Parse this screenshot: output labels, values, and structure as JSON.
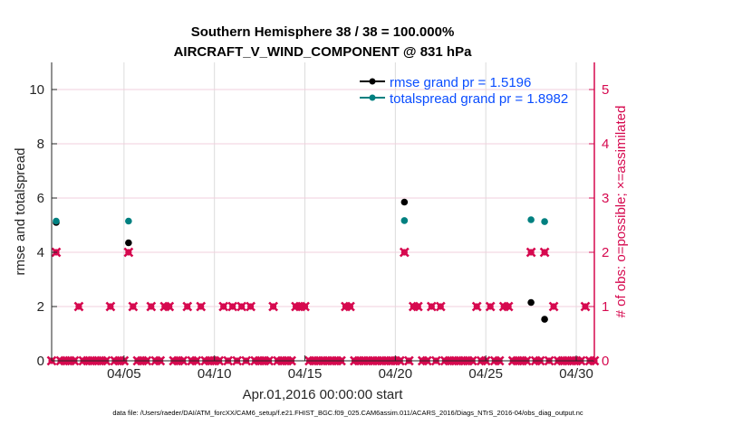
{
  "chart_data": {
    "type": "scatter",
    "title": [
      "Southern Hemisphere 38 / 38 = 100.000%",
      "AIRCRAFT_V_WIND_COMPONENT @ 831 hPa"
    ],
    "xlabel": "Apr.01,2016 00:00:00 start",
    "ylabel_left": "rmse and totalspread",
    "ylabel_right": "# of obs: o=possible; ×=assimilated",
    "x_ticks": [
      "04/05",
      "04/10",
      "04/15",
      "04/20",
      "04/25",
      "04/30"
    ],
    "x_tick_dates": [
      "2016-04-05",
      "2016-04-10",
      "2016-04-15",
      "2016-04-20",
      "2016-04-25",
      "2016-04-30"
    ],
    "xlim": [
      "2016-04-01T00:00",
      "2016-05-01T00:00"
    ],
    "ylim_left": [
      0,
      11
    ],
    "ylim_right": [
      0,
      5.5
    ],
    "y_ticks_left": [
      "0",
      "2",
      "4",
      "6",
      "8",
      "10"
    ],
    "y_ticks_right": [
      "0",
      "1",
      "2",
      "3",
      "4",
      "5"
    ],
    "grid": true,
    "legend_placement": "top-right",
    "series": [
      {
        "name": "rmse grand pr = 1.5196",
        "color": "#000000",
        "axis": "left",
        "points": [
          [
            "2016-04-01T06:00",
            5.1
          ],
          [
            "2016-04-05T06:00",
            4.35
          ],
          [
            "2016-04-20T12:00",
            5.85
          ],
          [
            "2016-04-27T12:00",
            2.15
          ],
          [
            "2016-04-28T06:00",
            1.53
          ]
        ]
      },
      {
        "name": "totalspread grand pr = 1.8982",
        "color": "#008080",
        "axis": "left",
        "points": [
          [
            "2016-04-01T06:00",
            5.15
          ],
          [
            "2016-04-05T06:00",
            5.15
          ],
          [
            "2016-04-20T12:00",
            5.17
          ],
          [
            "2016-04-27T12:00",
            5.2
          ],
          [
            "2016-04-28T06:00",
            5.13
          ]
        ]
      },
      {
        "name": "obs possible / assimilated",
        "color": "#d6094f",
        "axis": "right",
        "start": "2016-04-01T00:00",
        "step_hours": 6,
        "values": [
          0,
          2,
          0,
          0,
          0,
          0,
          1,
          0,
          0,
          0,
          0,
          0,
          0,
          1,
          0,
          0,
          0,
          2,
          1,
          0,
          0,
          0,
          1,
          0,
          0,
          1,
          1,
          0,
          0,
          0,
          1,
          0,
          0,
          1,
          0,
          0,
          0,
          0,
          1,
          0,
          1,
          0,
          1,
          0,
          1,
          0,
          0,
          0,
          0,
          1,
          0,
          0,
          0,
          0,
          1,
          1,
          1,
          0,
          0,
          0,
          0,
          0,
          0,
          0,
          0,
          1,
          1,
          0,
          0,
          0,
          0,
          0,
          0,
          0,
          0,
          0,
          0,
          0,
          2,
          0,
          1,
          1,
          0,
          0,
          1,
          0,
          1,
          0,
          0,
          0,
          0,
          0,
          0,
          0,
          1,
          0,
          0,
          1,
          0,
          0,
          1,
          1,
          0,
          0,
          0,
          0,
          2,
          0,
          0,
          2,
          0,
          1,
          0,
          0,
          0,
          0,
          0,
          0,
          1,
          0,
          0
        ]
      }
    ]
  },
  "footer": "data file: /Users/raeder/DAI/ATM_forcXX/CAM6_setup/f.e21.FHIST_BGC.f09_025.CAM6assim.011/ACARS_2016/Diags_NTrS_2016-04/obs_diag_output.nc"
}
